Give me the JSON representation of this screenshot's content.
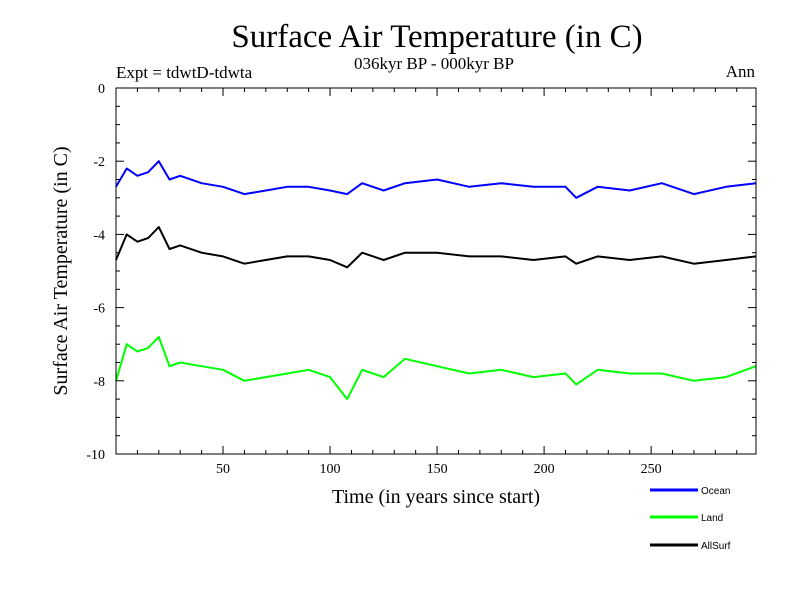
{
  "chart_data": {
    "type": "line",
    "title": "Surface Air Temperature (in C)",
    "subtitle": "036kyr BP - 000kyr BP",
    "expt_label": "Expt = tdwtD-tdwta",
    "season_label": "Ann",
    "xlabel": "Time (in years since start)",
    "ylabel": "Surface Air Temperature (in C)",
    "xlim": [
      0,
      299
    ],
    "ylim": [
      -10,
      0
    ],
    "x_ticks": [
      50,
      100,
      150,
      200,
      250
    ],
    "y_ticks": [
      0,
      -2,
      -4,
      -6,
      -8,
      -10
    ],
    "grid": false,
    "legend_position": "bottom-right",
    "series": [
      {
        "name": "Ocean",
        "color": "#0000ff",
        "x": [
          0,
          5,
          10,
          15,
          20,
          25,
          30,
          40,
          50,
          60,
          70,
          80,
          90,
          100,
          108,
          115,
          125,
          135,
          150,
          165,
          180,
          195,
          210,
          215,
          225,
          240,
          255,
          270,
          285,
          299
        ],
        "values": [
          -2.7,
          -2.2,
          -2.4,
          -2.3,
          -2.0,
          -2.5,
          -2.4,
          -2.6,
          -2.7,
          -2.9,
          -2.8,
          -2.7,
          -2.7,
          -2.8,
          -2.9,
          -2.6,
          -2.8,
          -2.6,
          -2.5,
          -2.7,
          -2.6,
          -2.7,
          -2.7,
          -3.0,
          -2.7,
          -2.8,
          -2.6,
          -2.9,
          -2.7,
          -2.6
        ]
      },
      {
        "name": "Land",
        "color": "#00ff00",
        "x": [
          0,
          5,
          10,
          15,
          20,
          25,
          30,
          40,
          50,
          60,
          70,
          80,
          90,
          100,
          108,
          115,
          125,
          135,
          150,
          165,
          180,
          195,
          210,
          215,
          225,
          240,
          255,
          270,
          285,
          299
        ],
        "values": [
          -8.0,
          -7.0,
          -7.2,
          -7.1,
          -6.8,
          -7.6,
          -7.5,
          -7.6,
          -7.7,
          -8.0,
          -7.9,
          -7.8,
          -7.7,
          -7.9,
          -8.5,
          -7.7,
          -7.9,
          -7.4,
          -7.6,
          -7.8,
          -7.7,
          -7.9,
          -7.8,
          -8.1,
          -7.7,
          -7.8,
          -7.8,
          -8.0,
          -7.9,
          -7.6
        ]
      },
      {
        "name": "AllSurf",
        "color": "#000000",
        "x": [
          0,
          5,
          10,
          15,
          20,
          25,
          30,
          40,
          50,
          60,
          70,
          80,
          90,
          100,
          108,
          115,
          125,
          135,
          150,
          165,
          180,
          195,
          210,
          215,
          225,
          240,
          255,
          270,
          285,
          299
        ],
        "values": [
          -4.7,
          -4.0,
          -4.2,
          -4.1,
          -3.8,
          -4.4,
          -4.3,
          -4.5,
          -4.6,
          -4.8,
          -4.7,
          -4.6,
          -4.6,
          -4.7,
          -4.9,
          -4.5,
          -4.7,
          -4.5,
          -4.5,
          -4.6,
          -4.6,
          -4.7,
          -4.6,
          -4.8,
          -4.6,
          -4.7,
          -4.6,
          -4.8,
          -4.7,
          -4.6
        ]
      }
    ],
    "legend_labels": [
      "Ocean",
      "Land",
      "AllSurf"
    ]
  }
}
